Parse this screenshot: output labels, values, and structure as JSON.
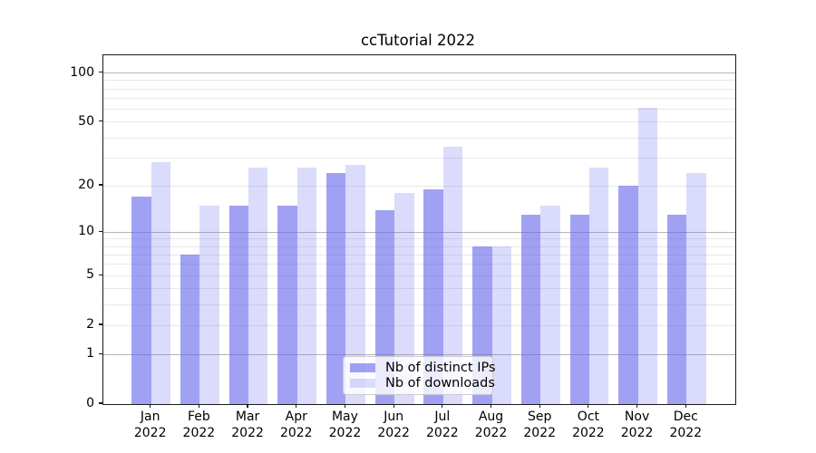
{
  "title": "ccTutorial 2022",
  "chart_data": {
    "type": "bar",
    "categories": [
      "Jan",
      "Feb",
      "Mar",
      "Apr",
      "May",
      "Jun",
      "Jul",
      "Aug",
      "Sep",
      "Oct",
      "Nov",
      "Dec"
    ],
    "year_label": "2022",
    "series": [
      {
        "name": "Nb of distinct IPs",
        "values": [
          17,
          7,
          15,
          15,
          24,
          14,
          19,
          8,
          13,
          13,
          20,
          13
        ],
        "color": "rgba(104,104,238,0.62)"
      },
      {
        "name": "Nb of downloads",
        "values": [
          28,
          15,
          26,
          26,
          27,
          18,
          35,
          8,
          15,
          26,
          61,
          24
        ],
        "color": "rgba(104,104,238,0.24)"
      }
    ],
    "xlabel": "",
    "ylabel": "",
    "yscale": "log1p",
    "ylim": [
      0,
      128.6
    ],
    "y_tick_labels": [
      "0",
      "1",
      "2",
      "5",
      "10",
      "20",
      "50",
      "100"
    ],
    "y_tick_values": [
      0,
      1,
      2,
      5,
      10,
      20,
      50,
      100
    ],
    "y_minor_grid_values": [
      2,
      3,
      4,
      5,
      6,
      7,
      8,
      9,
      20,
      30,
      40,
      50,
      60,
      70,
      80,
      90
    ],
    "y_major_grid_values": [
      1,
      10,
      100
    ],
    "grid": "both",
    "legend_position": "lower center"
  },
  "colors": {
    "background": "#ffffff",
    "spine": "#1a1a1a",
    "major_grid": "#b4b4b4",
    "minor_grid": "#e8e8e8",
    "bar_distinct_ips": "rgba(104,104,238,0.62)",
    "bar_downloads": "rgba(104,104,238,0.24)"
  }
}
